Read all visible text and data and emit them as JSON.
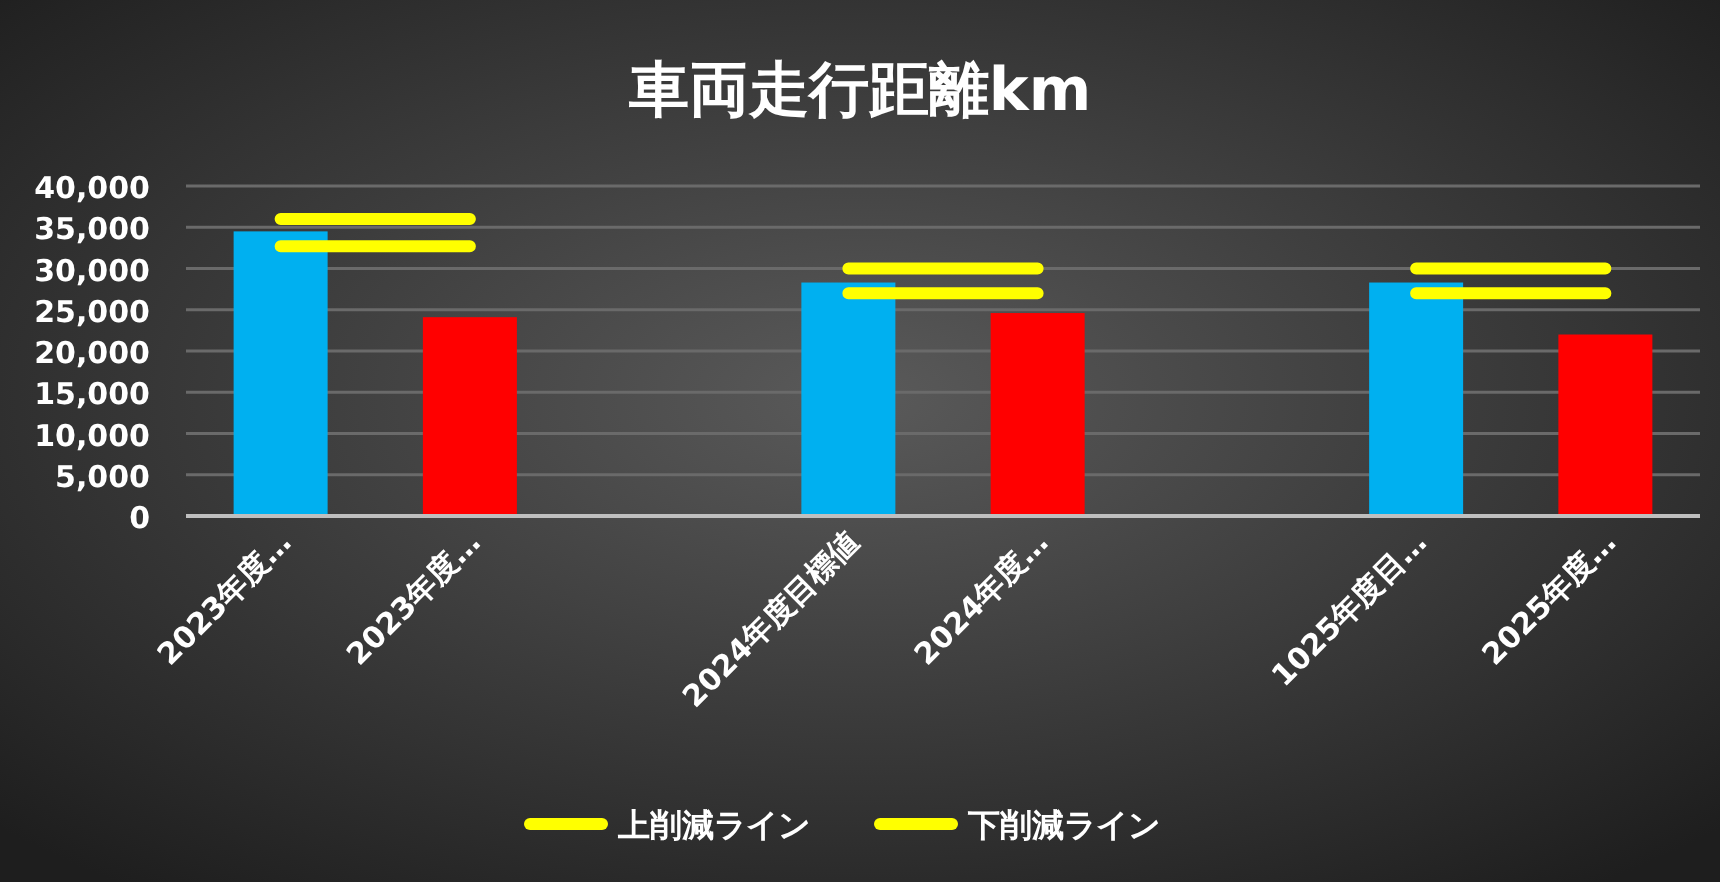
{
  "chart_data": {
    "type": "bar",
    "title": "車両走行距離km",
    "categories": [
      "2023年度…",
      "2023年度…",
      null,
      "2024年度目標値",
      "2024年度…",
      null,
      "1025年度目…",
      "2025年度…"
    ],
    "series": [
      {
        "values": [
          34500,
          24100,
          null,
          28300,
          24600,
          null,
          28300,
          22000
        ],
        "colors": [
          "#00b0f0",
          "#ff0000",
          null,
          "#00b0f0",
          "#ff0000",
          null,
          "#00b0f0",
          "#ff0000"
        ]
      },
      {
        "type": "line",
        "name": "上削減ライン",
        "color": "#ffff00",
        "values": [
          36000,
          36000,
          null,
          30000,
          30000,
          null,
          30000,
          30000
        ]
      },
      {
        "type": "line",
        "name": "下削減ライン",
        "color": "#ffff00",
        "values": [
          32700,
          32700,
          null,
          27000,
          27000,
          null,
          27000,
          27000
        ]
      }
    ],
    "ylim": [
      0,
      40000
    ],
    "yticks": [
      0,
      {
        "value": 5000,
        "label": "5,000"
      },
      {
        "value": 10000,
        "label": "10,000"
      },
      {
        "value": 15000,
        "label": "15,000"
      },
      {
        "value": 20000,
        "label": "20,000"
      },
      {
        "value": 25000,
        "label": "25,000"
      },
      {
        "value": 30000,
        "label": "30,000"
      },
      {
        "value": 35000,
        "label": "35,000"
      },
      {
        "value": 40000,
        "label": "40,000"
      }
    ],
    "grid": "y",
    "legend": "bottom"
  }
}
